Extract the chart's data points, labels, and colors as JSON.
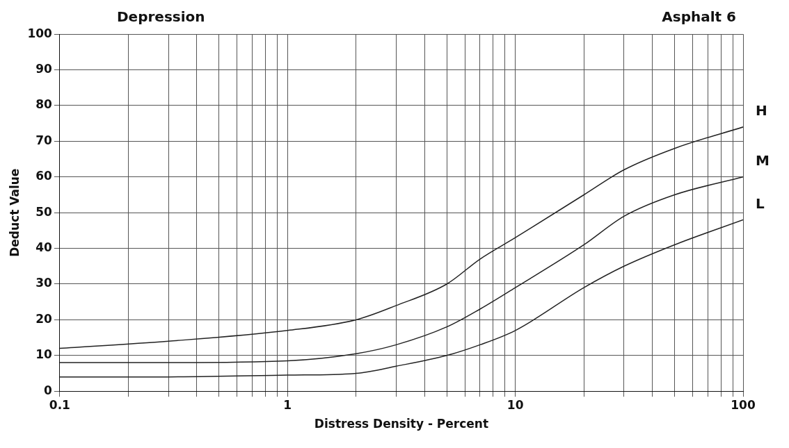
{
  "chart_data": {
    "type": "line",
    "title": "Depression",
    "subtitle": "Asphalt 6",
    "xlabel": "Distress Density - Percent",
    "ylabel": "Deduct Value",
    "log": "x",
    "xlim": [
      0.1,
      100
    ],
    "xticks": [
      0.1,
      {
        "value": 0.2,
        "label": null
      },
      {
        "value": 0.3,
        "label": null
      },
      {
        "value": 0.4,
        "label": null
      },
      {
        "value": 0.5,
        "label": null
      },
      {
        "value": 0.6,
        "label": null
      },
      {
        "value": 0.7,
        "label": null
      },
      {
        "value": 0.8,
        "label": null
      },
      {
        "value": 0.9,
        "label": null
      },
      1,
      {
        "value": 2,
        "label": null
      },
      {
        "value": 3,
        "label": null
      },
      {
        "value": 4,
        "label": null
      },
      {
        "value": 5,
        "label": null
      },
      {
        "value": 6,
        "label": null
      },
      {
        "value": 7,
        "label": null
      },
      {
        "value": 8,
        "label": null
      },
      {
        "value": 9,
        "label": null
      },
      10,
      {
        "value": 20,
        "label": null
      },
      {
        "value": 30,
        "label": null
      },
      {
        "value": 40,
        "label": null
      },
      {
        "value": 50,
        "label": null
      },
      {
        "value": 60,
        "label": null
      },
      {
        "value": 70,
        "label": null
      },
      {
        "value": 80,
        "label": null
      },
      {
        "value": 90,
        "label": null
      },
      100
    ],
    "ylim": [
      0,
      100
    ],
    "yticks": [
      0,
      10,
      20,
      30,
      40,
      50,
      60,
      70,
      80,
      90,
      100
    ],
    "grid": true,
    "marker": "none",
    "line_style": "solid",
    "legend": false,
    "x": [
      0.1,
      0.3,
      1,
      2,
      3,
      5,
      7,
      10,
      20,
      30,
      50,
      100
    ],
    "series": [
      {
        "name": "H",
        "color": "#222222",
        "values": [
          12,
          14,
          17,
          20,
          24,
          30,
          37,
          43,
          55,
          62,
          68,
          74
        ]
      },
      {
        "name": "M",
        "color": "#222222",
        "values": [
          8,
          8,
          8.5,
          10.5,
          13,
          18,
          23,
          29,
          41,
          49,
          55,
          60
        ]
      },
      {
        "name": "L",
        "color": "#222222",
        "values": [
          4,
          4,
          4.5,
          5,
          7,
          10,
          13,
          17,
          29,
          35,
          41,
          48
        ]
      }
    ]
  }
}
